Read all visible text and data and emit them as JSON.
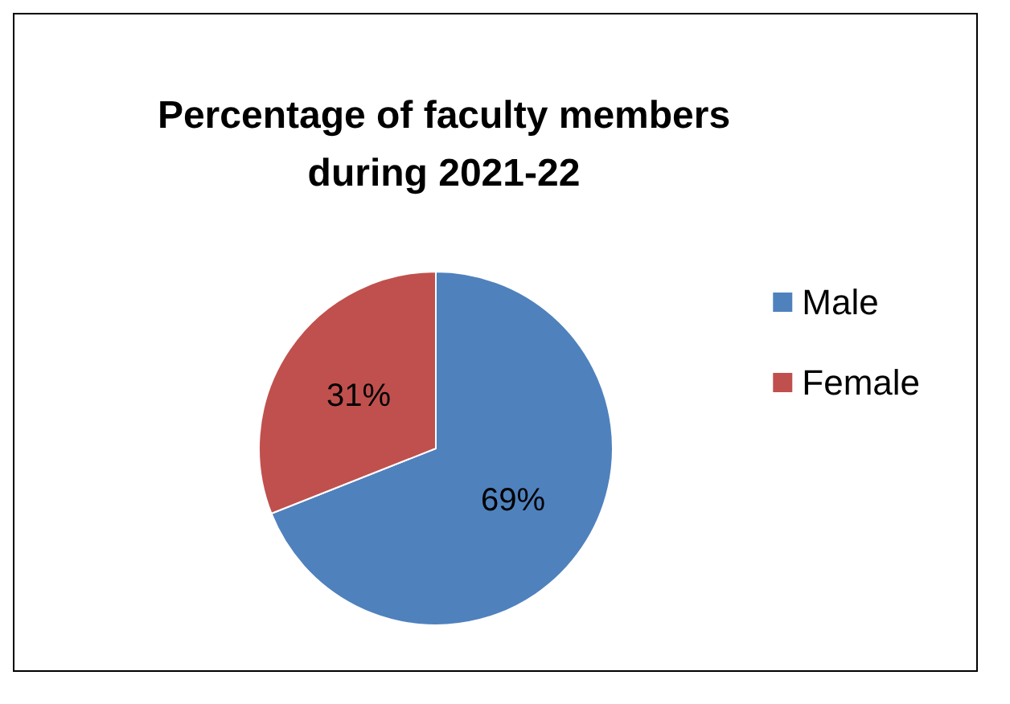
{
  "chart_data": {
    "type": "pie",
    "title": "Percentage of faculty members\nduring 2021-22",
    "categories": [
      "Male",
      "Female"
    ],
    "values": [
      69,
      31
    ],
    "colors": [
      "#4f81bd",
      "#c0504d"
    ],
    "value_labels": [
      "69%",
      "31%"
    ],
    "legend": "right"
  }
}
